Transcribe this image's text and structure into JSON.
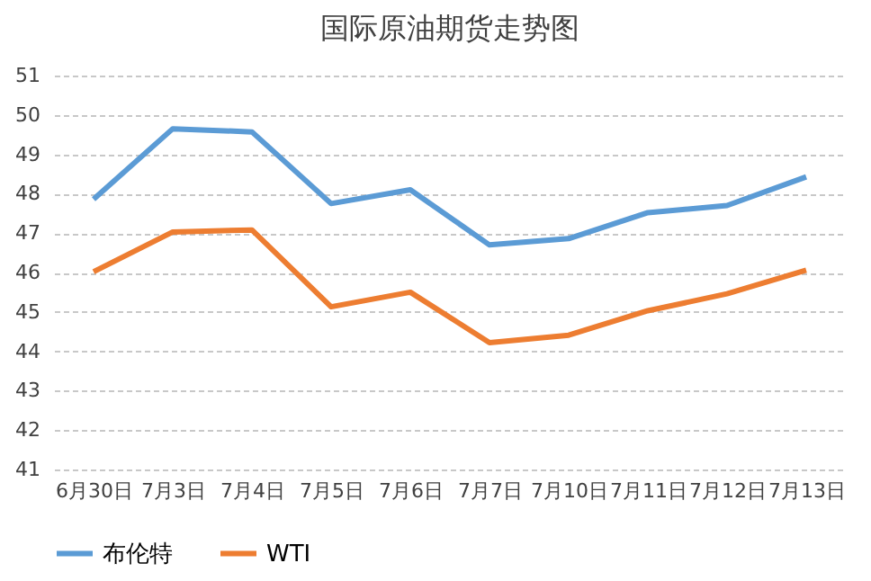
{
  "chart_data": {
    "type": "line",
    "title": "国际原油期货走势图",
    "categories": [
      "6月30日",
      "7月3日",
      "7月4日",
      "7月5日",
      "7月6日",
      "7月7日",
      "7月10日",
      "7月11日",
      "7月12日",
      "7月13日"
    ],
    "series": [
      {
        "name": "布伦特",
        "color": "#5b9bd5",
        "values": [
          47.86,
          49.65,
          49.57,
          47.75,
          48.1,
          46.7,
          46.86,
          47.52,
          47.7,
          48.43
        ]
      },
      {
        "name": "WTI",
        "color": "#ed7d31",
        "values": [
          46.02,
          47.03,
          47.08,
          45.13,
          45.5,
          44.22,
          44.41,
          45.03,
          45.46,
          46.06
        ]
      }
    ],
    "ylim": [
      41,
      51
    ],
    "yticks": [
      41,
      42,
      43,
      44,
      45,
      46,
      47,
      48,
      49,
      50,
      51
    ],
    "grid": "y",
    "legend": "bottom",
    "marker": "none",
    "line_style": "solid"
  }
}
